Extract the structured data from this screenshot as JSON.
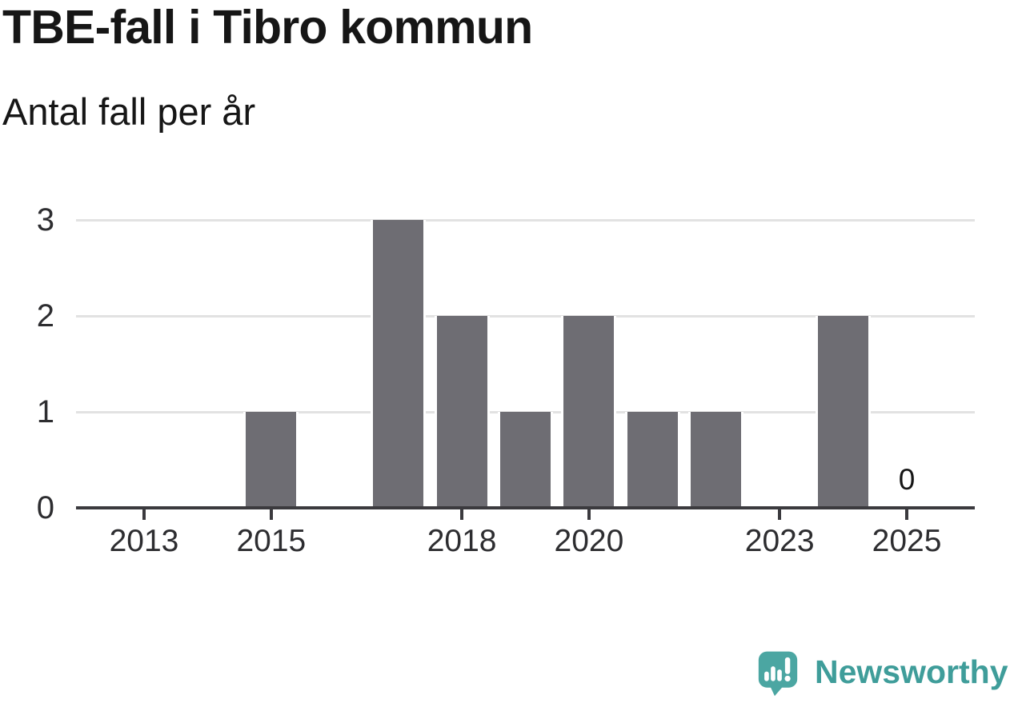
{
  "header": {
    "title": "TBE-fall i Tibro kommun",
    "subtitle": "Antal fall per år"
  },
  "chart_data": {
    "type": "bar",
    "title": "TBE-fall i Tibro kommun",
    "subtitle": "Antal fall per år",
    "categories": [
      2013,
      2014,
      2015,
      2016,
      2017,
      2018,
      2019,
      2020,
      2021,
      2022,
      2023,
      2024,
      2025
    ],
    "values": [
      0,
      0,
      1,
      0,
      3,
      2,
      1,
      2,
      1,
      1,
      0,
      2,
      0
    ],
    "xlabel": "",
    "ylabel": "",
    "ylim": [
      0,
      3
    ],
    "y_ticks": [
      0,
      1,
      2,
      3
    ],
    "x_tick_labels": [
      "2013",
      "2015",
      "2018",
      "2020",
      "2023",
      "2025"
    ],
    "grid": "horizontal",
    "legend_position": "none",
    "annotations": [
      {
        "category": 2025,
        "text": "0"
      }
    ],
    "colors": {
      "bar": "#6e6d73",
      "grid": "#e2e2e2",
      "axis": "#3b3a3e",
      "tick_label": "#2d2d30",
      "text": "#161616",
      "background": "#ffffff"
    }
  },
  "footer": {
    "brand_label": "Newsworthy",
    "brand_text_color": "#3f9d9a",
    "brand_icon_color": "#4ba6a2",
    "brand_icon": "newsworthy-speech-bubble-bar-chart-icon"
  }
}
